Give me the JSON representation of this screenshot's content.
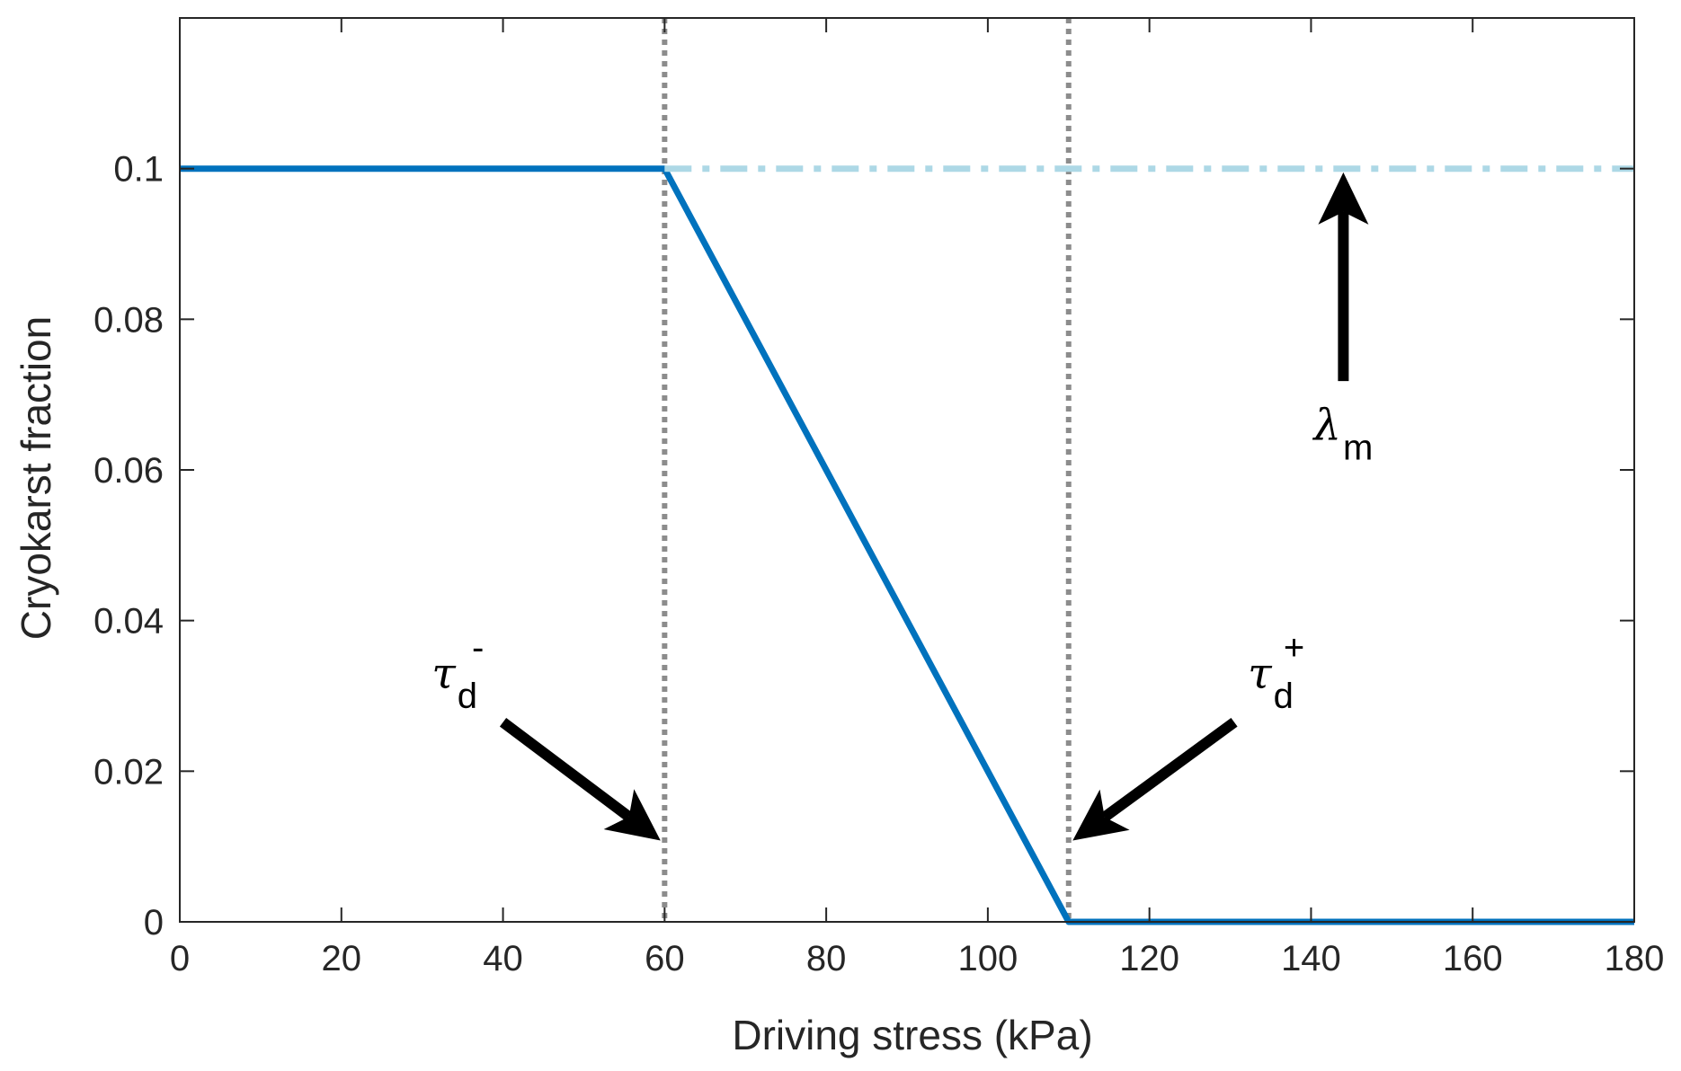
{
  "chart_data": {
    "type": "line",
    "title": "",
    "xlabel": "Driving stress (kPa)",
    "ylabel": "Cryokarst fraction",
    "xlim": [
      0,
      180
    ],
    "ylim": [
      0,
      0.12
    ],
    "xticks": [
      0,
      20,
      40,
      60,
      80,
      100,
      120,
      140,
      160,
      180
    ],
    "xtick_labels": [
      "0",
      "20",
      "40",
      "60",
      "80",
      "100",
      "120",
      "140",
      "160",
      "180"
    ],
    "yticks": [
      0,
      0.02,
      0.04,
      0.06,
      0.08,
      0.1
    ],
    "ytick_labels": [
      "0",
      "0.02",
      "0.04",
      "0.06",
      "0.08",
      "0.1"
    ],
    "grid": false,
    "series": [
      {
        "style": "solid",
        "color": "#0072BD",
        "x": [
          0,
          60,
          110,
          180
        ],
        "y": [
          0.1,
          0.1,
          0,
          0
        ]
      },
      {
        "style": "dash-dot",
        "color": "#ADD8E6",
        "x": [
          60,
          180
        ],
        "y": [
          0.1,
          0.1
        ]
      }
    ],
    "vlines": [
      {
        "x": 60,
        "style": "dotted",
        "color": "#8C8C8C"
      },
      {
        "x": 110,
        "style": "dotted",
        "color": "#8C8C8C"
      }
    ],
    "annotations": [
      {
        "id": "tau-minus",
        "symbol": "τ",
        "subscript": "d",
        "superscript": "-",
        "label_at": [
          34,
          0.031
        ],
        "arrow_from": [
          40,
          0.0265
        ],
        "arrow_to": [
          59.5,
          0.0108
        ]
      },
      {
        "id": "tau-plus",
        "symbol": "τ",
        "subscript": "d",
        "superscript": "+",
        "label_at": [
          135,
          0.031
        ],
        "arrow_from": [
          130.5,
          0.0265
        ],
        "arrow_to": [
          110.5,
          0.0108
        ]
      },
      {
        "id": "lambda-m",
        "symbol": "λ",
        "subscript": "m",
        "superscript": "",
        "label_at": [
          144,
          0.064
        ],
        "arrow_from": [
          144,
          0.0718
        ],
        "arrow_to": [
          144,
          0.0995
        ]
      }
    ]
  }
}
